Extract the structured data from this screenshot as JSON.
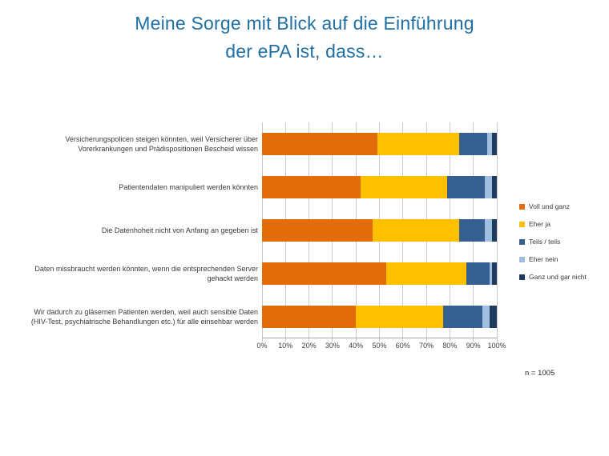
{
  "title": {
    "line1": "Meine Sorge mit Blick auf die Einführung",
    "line2": "der ePA ist, dass…",
    "color": "#1F6FA5"
  },
  "note": "n = 1005",
  "chart_data": {
    "type": "bar",
    "stacked": true,
    "orientation": "horizontal",
    "unit": "%",
    "xlim": [
      0,
      100
    ],
    "grid": true,
    "grid_color": "#c9c9c9",
    "axis_color": "#a6a6a6",
    "legend_position": "right",
    "tick_labels": [
      "0%",
      "10%",
      "20%",
      "30%",
      "40%",
      "50%",
      "60%",
      "70%",
      "80%",
      "90%",
      "100%"
    ],
    "categories": [
      "Versicherungspolicen steigen könnten, weil Versicherer über Vorerkrankungen und Prädispositionen Bescheid wissen",
      "Patientendaten manipuliert werden könnten",
      "Die Datenhoheit nicht von Anfang an gegeben ist",
      "Daten missbraucht werden könnten, wenn die entsprechenden Server gehackt werden",
      "Wir dadurch zu gläsernen Patienten werden, weil auch sensible Daten (HIV-Test, psychiatrische Behandlungen etc.) für alle einsehbar werden"
    ],
    "series": [
      {
        "name": "Voll und ganz",
        "color": "#E36C0A",
        "values": [
          49,
          42,
          47,
          53,
          40
        ]
      },
      {
        "name": "Eher ja",
        "color": "#FFC000",
        "values": [
          35,
          37,
          37,
          34,
          37
        ]
      },
      {
        "name": "Teils / teils",
        "color": "#376092",
        "values": [
          12,
          16,
          11,
          10,
          17
        ]
      },
      {
        "name": "Eher nein",
        "color": "#9FBEE0",
        "values": [
          2,
          3,
          3,
          1,
          3
        ]
      },
      {
        "name": "Ganz und gar nicht",
        "color": "#1E3B5F",
        "values": [
          2,
          2,
          2,
          2,
          3
        ]
      }
    ]
  }
}
